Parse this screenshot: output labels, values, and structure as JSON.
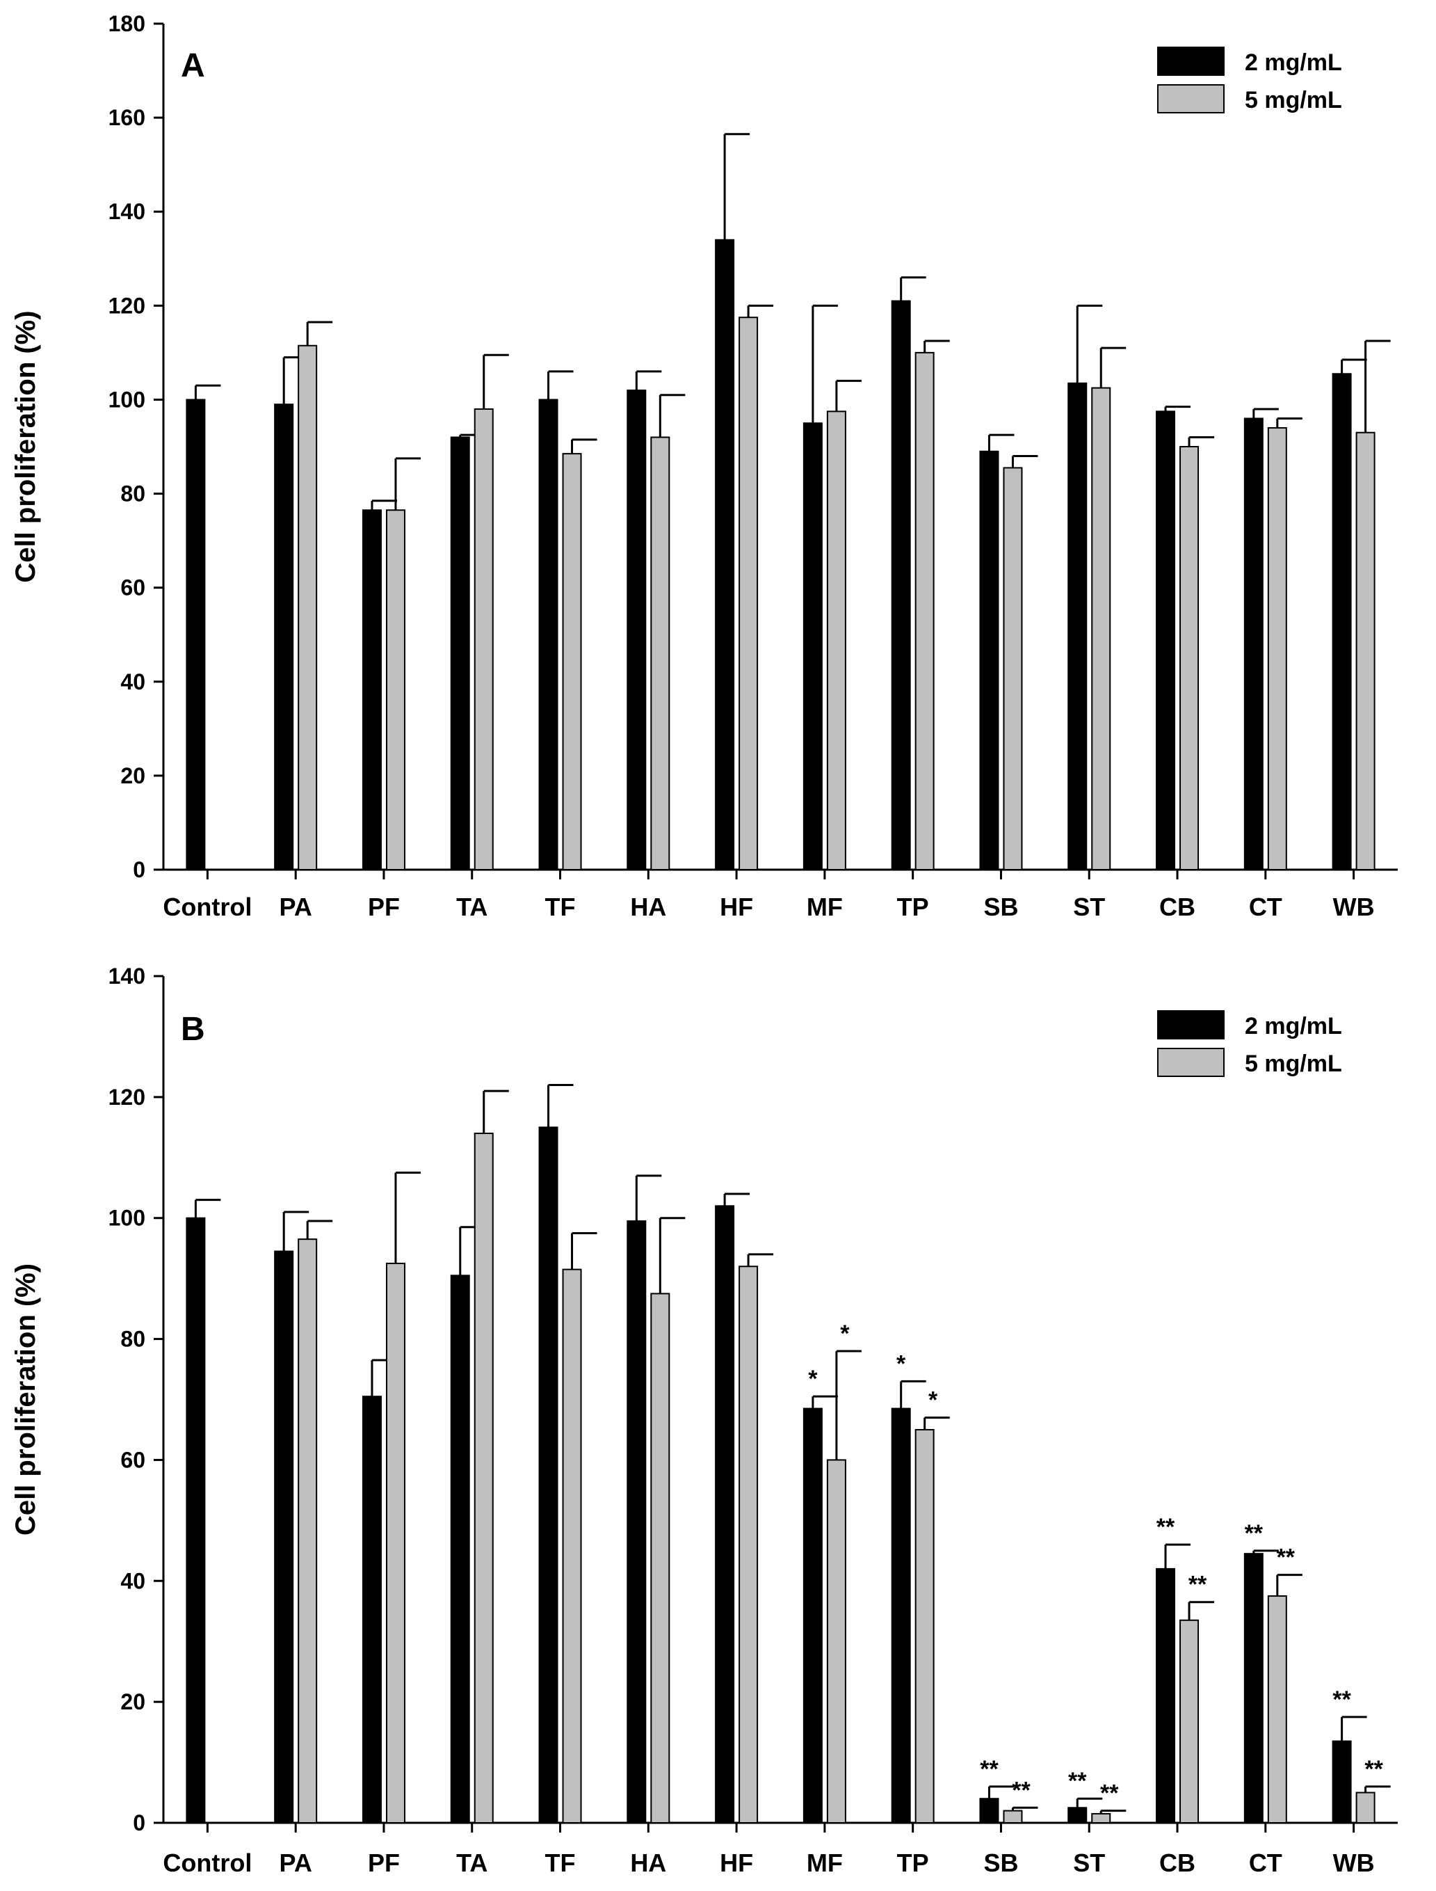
{
  "colors": {
    "series_2": "#000000",
    "series_5": "#c0c0c0"
  },
  "chart_data": [
    {
      "type": "bar",
      "panel": "A",
      "ylabel": "Cell proliferation (%)",
      "xlabel": "",
      "ylim": [
        0,
        180
      ],
      "yticks": [
        0,
        20,
        40,
        60,
        80,
        100,
        120,
        140,
        160,
        180
      ],
      "legend_position": "top-right",
      "categories": [
        "Control",
        "PA",
        "PF",
        "TA",
        "TF",
        "HA",
        "HF",
        "MF",
        "TP",
        "SB",
        "ST",
        "CB",
        "CT",
        "WB"
      ],
      "series": [
        {
          "name": "2 mg/mL",
          "values": [
            100,
            99,
            76.5,
            92,
            100,
            102,
            134,
            95,
            121,
            89,
            103.5,
            97.5,
            96,
            105.5
          ],
          "errors": [
            3,
            10,
            2,
            0.5,
            6,
            4,
            22.5,
            25,
            5,
            3.5,
            16.5,
            1,
            2,
            3
          ],
          "sig": [
            "",
            "",
            "",
            "",
            "",
            "",
            "",
            "",
            "",
            "",
            "",
            "",
            "",
            ""
          ]
        },
        {
          "name": "5 mg/mL",
          "values": [
            null,
            111.5,
            76.5,
            98,
            88.5,
            92,
            117.5,
            97.5,
            110,
            85.5,
            102.5,
            90,
            94,
            93
          ],
          "errors": [
            null,
            5,
            11,
            11.5,
            3,
            9,
            2.5,
            6.5,
            2.5,
            2.5,
            8.5,
            2,
            2,
            19.5
          ],
          "sig": [
            "",
            "",
            "",
            "",
            "",
            "",
            "",
            "",
            "",
            "",
            "",
            "",
            "",
            ""
          ]
        }
      ]
    },
    {
      "type": "bar",
      "panel": "B",
      "ylabel": "Cell proliferation (%)",
      "xlabel": "",
      "ylim": [
        0,
        140
      ],
      "yticks": [
        0,
        20,
        40,
        60,
        80,
        100,
        120,
        140
      ],
      "legend_position": "top-right",
      "categories": [
        "Control",
        "PA",
        "PF",
        "TA",
        "TF",
        "HA",
        "HF",
        "MF",
        "TP",
        "SB",
        "ST",
        "CB",
        "CT",
        "WB"
      ],
      "series": [
        {
          "name": "2 mg/mL",
          "values": [
            100,
            94.5,
            70.5,
            90.5,
            115,
            99.5,
            102,
            68.5,
            68.5,
            4,
            2.5,
            42,
            44.5,
            13.5
          ],
          "errors": [
            3,
            6.5,
            6,
            8,
            7,
            7.5,
            2,
            2,
            4.5,
            2,
            1.5,
            4,
            0.5,
            4
          ],
          "sig": [
            "",
            "",
            "",
            "",
            "",
            "",
            "",
            "*",
            "*",
            "**",
            "**",
            "**",
            "**",
            "**"
          ]
        },
        {
          "name": "5 mg/mL",
          "values": [
            null,
            96.5,
            92.5,
            114,
            91.5,
            87.5,
            92,
            60,
            65,
            2,
            1.5,
            33.5,
            37.5,
            5
          ],
          "errors": [
            null,
            3,
            15,
            7,
            6,
            12.5,
            2,
            18,
            2,
            0.5,
            0.5,
            3,
            3.5,
            1
          ],
          "sig": [
            "",
            "",
            "",
            "",
            "",
            "",
            "",
            "*",
            "*",
            "**",
            "**",
            "**",
            "**",
            "**"
          ]
        }
      ]
    }
  ]
}
